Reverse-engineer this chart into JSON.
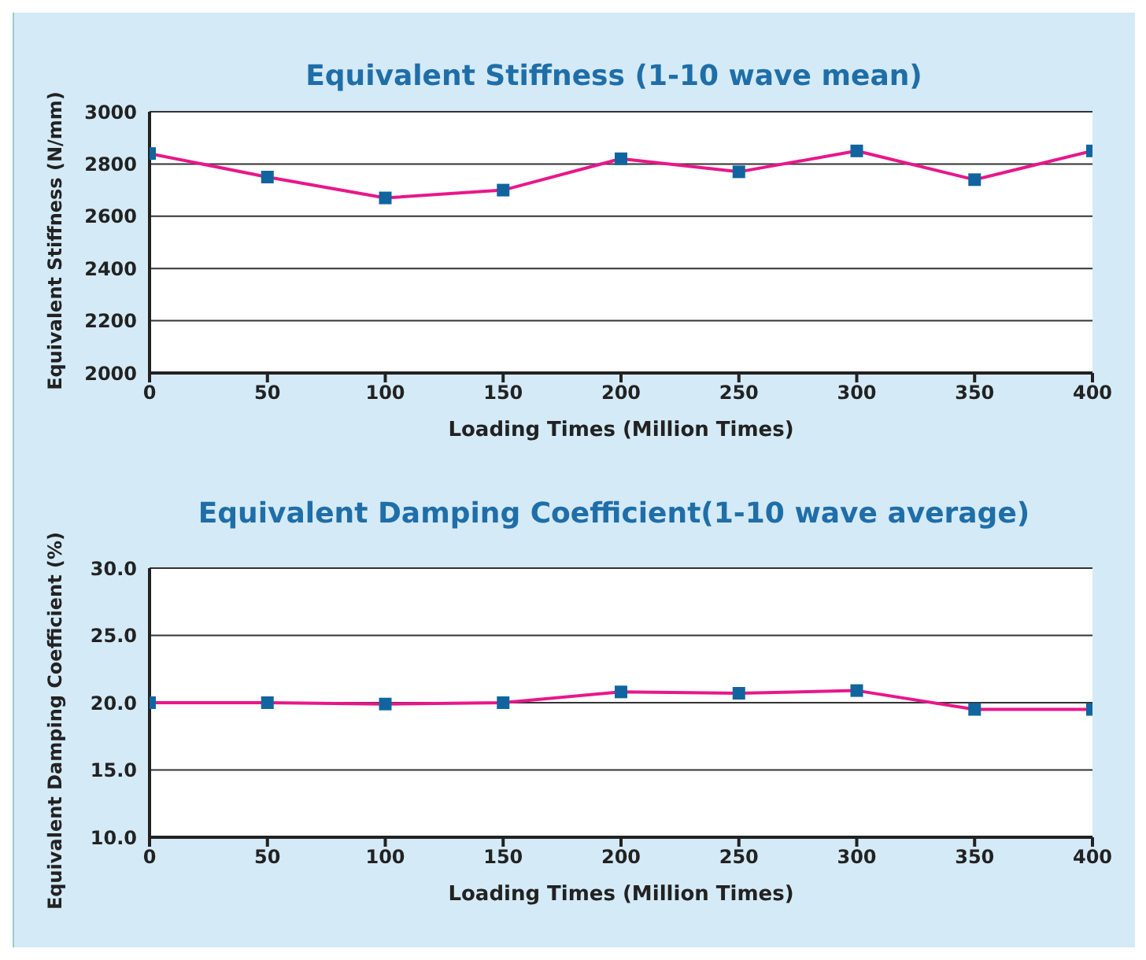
{
  "chart_data": [
    {
      "type": "line",
      "title": "Equivalent Stiffness (1-10 wave mean)",
      "xlabel": "Loading Times (Million Times)",
      "ylabel": "Equivalent Stiffness (N/mm)",
      "x": [
        0,
        50,
        100,
        150,
        200,
        250,
        300,
        350,
        400
      ],
      "series": [
        {
          "color": "#e8178a",
          "values": [
            2840,
            2750,
            2670,
            2700,
            2820,
            2770,
            2850,
            2740,
            2850
          ]
        }
      ],
      "xlim": [
        0,
        400
      ],
      "xticks": [
        0,
        50,
        100,
        150,
        200,
        250,
        300,
        350,
        400
      ],
      "ylim": [
        2000,
        3000
      ],
      "yticks": [
        2000,
        2200,
        2400,
        2600,
        2800,
        3000
      ],
      "grid": "y",
      "marker": "square",
      "line_style": "solid"
    },
    {
      "type": "line",
      "title": "Equivalent Damping Coefficient(1-10 wave average)",
      "xlabel": "Loading Times (Million Times)",
      "ylabel": "Equivalent Damping Coefficient (%)",
      "x": [
        0,
        50,
        100,
        150,
        200,
        250,
        300,
        350,
        400
      ],
      "series": [
        {
          "color": "#e8178a",
          "values": [
            20.0,
            20.0,
            19.9,
            20.0,
            20.8,
            20.7,
            20.9,
            19.5,
            19.5
          ]
        }
      ],
      "xlim": [
        0,
        400
      ],
      "xticks": [
        0,
        50,
        100,
        150,
        200,
        250,
        300,
        350,
        400
      ],
      "ylim": [
        10,
        30
      ],
      "yticks": [
        {
          "value": 10,
          "label": "10.0"
        },
        {
          "value": 15,
          "label": "15.0"
        },
        {
          "value": 20,
          "label": "20.0"
        },
        {
          "value": 25,
          "label": "25.0"
        },
        {
          "value": 30,
          "label": "30.0"
        }
      ],
      "grid": "y",
      "marker": "square",
      "line_style": "solid"
    }
  ]
}
